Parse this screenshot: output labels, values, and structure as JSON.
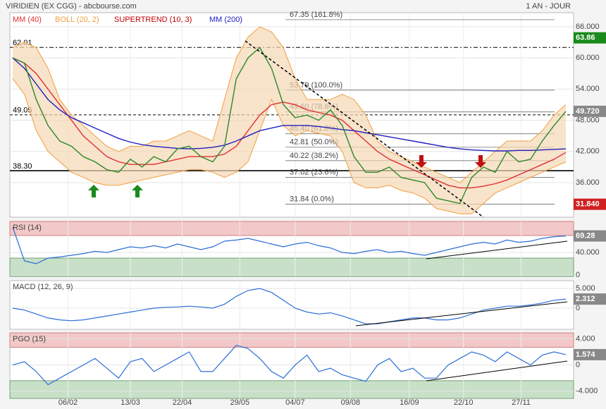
{
  "chart_data": [
    {
      "type": "line",
      "title": "VIRIDIEN (EX CGG) - abcbourse.com",
      "subtitle": "1 AN - JOUR",
      "values": [
        60,
        59,
        52,
        47,
        44,
        43,
        41,
        40,
        38.5,
        38,
        40.5,
        39,
        41,
        40,
        42.5,
        43,
        41,
        40,
        43,
        56,
        60,
        62,
        58,
        51,
        48.5,
        49,
        48,
        50,
        47,
        41,
        38,
        38,
        39,
        37,
        36.5,
        36,
        33,
        32.5,
        32,
        37,
        39,
        38,
        42,
        40,
        40.5,
        44,
        47,
        49.72
      ],
      "color": "#2a8a2a",
      "series": [
        {
          "name": "MM (40)",
          "color": "#e03030",
          "values": [
            60,
            59,
            57,
            54,
            51,
            48,
            45,
            43,
            41,
            40,
            39.5,
            39.5,
            39.5,
            40,
            40.5,
            41,
            41,
            41,
            41.5,
            43,
            46,
            49,
            51,
            51.5,
            51,
            50,
            49.5,
            49,
            48,
            46,
            44,
            42,
            40.5,
            39.5,
            38.5,
            37.5,
            36.5,
            35.5,
            35,
            35,
            35.3,
            35.8,
            36.5,
            37.5,
            38.5,
            39.5,
            40.5,
            41.8
          ]
        },
        {
          "name": "BOLL (20, 2)",
          "color": "#f0a040",
          "upper": [
            62,
            63,
            62,
            58,
            52,
            49,
            47,
            45,
            43,
            42,
            43,
            43,
            44,
            44,
            45,
            46,
            45,
            44,
            52,
            60,
            64,
            66,
            65,
            62,
            56,
            52,
            52,
            52,
            53,
            52,
            49,
            44,
            42,
            41,
            40,
            39,
            38,
            37,
            36,
            38,
            40,
            42,
            44,
            44,
            44,
            46,
            49,
            51
          ],
          "lower": [
            56,
            53,
            46,
            42,
            40,
            38,
            37,
            36,
            35.5,
            35.5,
            36,
            36.5,
            37,
            37.5,
            38,
            38.5,
            38.5,
            38,
            37,
            38,
            40,
            46,
            52,
            47,
            45,
            46,
            45.5,
            45,
            42,
            36,
            35,
            35,
            35.5,
            34.5,
            34,
            33,
            31,
            30.5,
            30,
            30,
            32,
            34,
            35,
            36,
            37,
            38,
            39,
            40
          ]
        },
        {
          "name": "SUPERTREND (10, 3)",
          "color": "#c00000"
        },
        {
          "name": "MM (200)",
          "color": "#2020c0",
          "values": [
            60,
            58,
            55,
            52,
            50,
            48.5,
            47.5,
            46.5,
            45.5,
            44.5,
            43.8,
            43.3,
            43,
            42.8,
            42.6,
            42.5,
            42.6,
            42.8,
            43.2,
            44,
            45,
            46,
            46.5,
            47,
            47,
            47,
            46.8,
            46.5,
            46.2,
            46,
            45.6,
            45.2,
            44.8,
            44.4,
            44,
            43.6,
            43.2,
            42.8,
            42.5,
            42.3,
            42.2,
            42.1,
            42.1,
            42.2,
            42.2,
            42.3,
            42.4,
            42.5
          ]
        }
      ],
      "xlim": [
        0,
        47
      ],
      "xticks": [
        {
          "value": 4.7,
          "label": "06/02"
        },
        {
          "value": 10,
          "label": "13/03"
        },
        {
          "value": 14.4,
          "label": "22/04"
        },
        {
          "value": 19.3,
          "label": "29/05"
        },
        {
          "value": 24,
          "label": "04/07"
        },
        {
          "value": 28.7,
          "label": "09/08"
        },
        {
          "value": 33.7,
          "label": "16/09"
        },
        {
          "value": 38.3,
          "label": "22/10"
        },
        {
          "value": 43.2,
          "label": "27/11"
        }
      ],
      "ylim": [
        29.35,
        68.7
      ],
      "yticks": [
        {
          "value": 36,
          "label": "36.000"
        },
        {
          "value": 42,
          "label": "42.000"
        },
        {
          "value": 48,
          "label": "48.000"
        },
        {
          "value": 54,
          "label": "54.000"
        },
        {
          "value": 60,
          "label": "60.000"
        },
        {
          "value": 66,
          "label": "66.000"
        }
      ],
      "levels": [
        {
          "value": 62.01,
          "label": "62.01",
          "style": "dash-dot"
        },
        {
          "value": 49.05,
          "label": "49.05",
          "style": "dashed"
        },
        {
          "value": 38.3,
          "label": "38.30",
          "style": "solid"
        }
      ],
      "fibonacci": [
        {
          "value": 67.35,
          "label": "67.35 (161.8%)"
        },
        {
          "value": 53.79,
          "label": "53.79 (100.0%)"
        },
        {
          "value": 49.6,
          "label": "49.60 (78.6%)"
        },
        {
          "value": 45.4,
          "label": "45.40 (61.8%)"
        },
        {
          "value": 42.81,
          "label": "42.81 (50.0%)"
        },
        {
          "value": 40.22,
          "label": "40.22 (38.2%)"
        },
        {
          "value": 37.02,
          "label": "37.02 (23.6%)"
        },
        {
          "value": 31.84,
          "label": "31.84 (0.0%)"
        }
      ],
      "tags": [
        {
          "value": 63.86,
          "label": "63.86",
          "color": "#1a8a1a"
        },
        {
          "value": 49.72,
          "label": "49.720",
          "color": "#888888"
        },
        {
          "value": 31.84,
          "label": "31.840",
          "color": "#d02020"
        }
      ]
    },
    {
      "type": "line",
      "title": "RSI (14)",
      "color": "#2a6fd6",
      "values": [
        85,
        25,
        20,
        30,
        32,
        35,
        38,
        42,
        40,
        45,
        50,
        48,
        52,
        48,
        55,
        50,
        45,
        50,
        60,
        62,
        65,
        60,
        55,
        50,
        55,
        58,
        52,
        48,
        40,
        38,
        42,
        45,
        40,
        42,
        38,
        35,
        40,
        45,
        50,
        55,
        58,
        55,
        62,
        58,
        60,
        65,
        68,
        69.28
      ],
      "xlim": [
        0,
        47
      ],
      "ylim": [
        -2.5,
        95
      ],
      "yticks": [
        0,
        {
          "value": 40,
          "label": "40.000"
        }
      ],
      "bands": [
        30,
        70
      ],
      "tags": [
        {
          "value": 69.28,
          "label": "69.28",
          "color": "#888888"
        }
      ]
    },
    {
      "type": "line",
      "title": "MACD (12, 26, 9)",
      "color": "#2a6fd6",
      "values": [
        0,
        -0.5,
        -1.5,
        -2.5,
        -3,
        -3.2,
        -3,
        -2.5,
        -2,
        -1.5,
        -1,
        -0.5,
        0,
        0.2,
        0.3,
        0.5,
        0.3,
        0,
        1,
        3,
        4.5,
        5,
        4,
        2,
        0,
        -1,
        -1.5,
        -1.2,
        -2,
        -3,
        -4,
        -4,
        -3.5,
        -3,
        -2.5,
        -2.5,
        -3,
        -3,
        -2.5,
        -1.5,
        -0.5,
        0,
        0.5,
        0.5,
        0.8,
        1.3,
        2,
        2.312
      ],
      "xlim": [
        0,
        47
      ],
      "ylim": [
        -5.4,
        7
      ],
      "yticks": [
        0,
        {
          "value": 5,
          "label": "5.000"
        }
      ],
      "tags": [
        {
          "value": 2.312,
          "label": "2.312",
          "color": "#888888"
        }
      ]
    },
    {
      "type": "line",
      "title": "PGO (15)",
      "color": "#2a6fd6",
      "values": [
        0,
        0.5,
        -1,
        -3,
        -2,
        -1,
        0,
        1,
        -0.5,
        -2,
        0.5,
        1,
        -1,
        0,
        1,
        2,
        -1,
        -1,
        1,
        3,
        2.5,
        1,
        -1,
        -2,
        0,
        1.5,
        -1,
        -0.5,
        -1.5,
        -2,
        -2.5,
        0,
        1,
        -1,
        -0.5,
        -2,
        -2,
        0,
        1,
        2,
        1.5,
        0.5,
        2,
        1,
        0,
        1.5,
        2,
        1.574
      ],
      "xlim": [
        0,
        47
      ],
      "ylim": [
        -5.1,
        4.9
      ],
      "yticks": [
        {
          "value": -4,
          "label": "-4.000"
        },
        0,
        {
          "value": 4,
          "label": "4.000"
        }
      ],
      "bands": [
        -2.4,
        2.7
      ],
      "tags": [
        {
          "value": 1.574,
          "label": "1.574",
          "color": "#888888"
        }
      ]
    }
  ]
}
